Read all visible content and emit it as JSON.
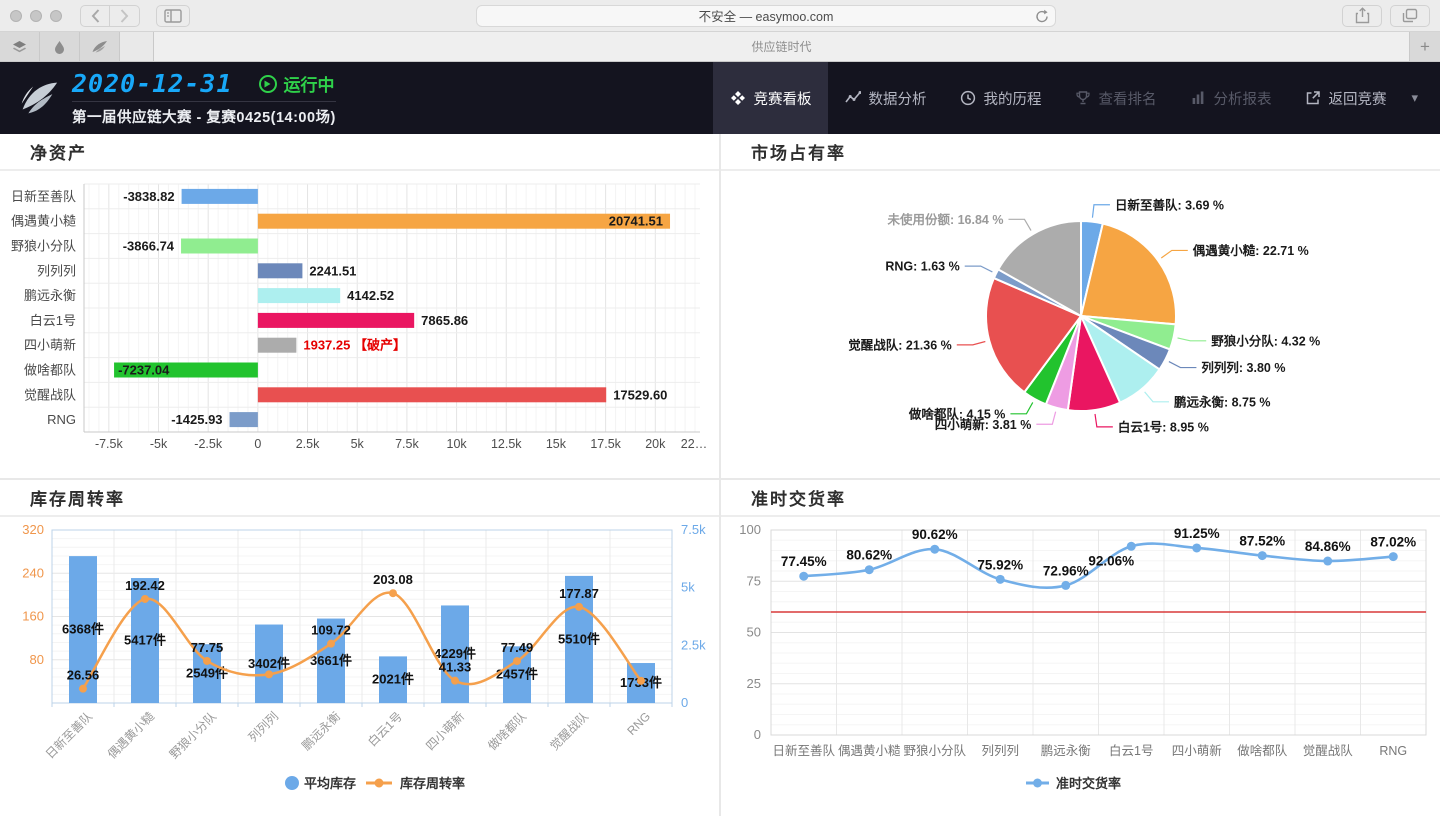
{
  "browser": {
    "url_text": "不安全 — easymoo.com",
    "tab_title": "供应链时代",
    "new_tab_label": "+"
  },
  "header": {
    "date": "2020-12-31",
    "status": "运行中",
    "competition": "第一届供应链大赛 - 复赛0425(14:00场)",
    "caret": "▾",
    "nav": [
      {
        "label": "竞赛看板",
        "icon": "dashboard-icon",
        "active": true,
        "disabled": false
      },
      {
        "label": "数据分析",
        "icon": "line-chart-icon",
        "active": false,
        "disabled": false
      },
      {
        "label": "我的历程",
        "icon": "clock-icon",
        "active": false,
        "disabled": false
      },
      {
        "label": "查看排名",
        "icon": "trophy-icon",
        "active": false,
        "disabled": true
      },
      {
        "label": "分析报表",
        "icon": "report-icon",
        "active": false,
        "disabled": true
      },
      {
        "label": "返回竞赛",
        "icon": "external-link-icon",
        "active": false,
        "disabled": false
      }
    ]
  },
  "teams": [
    "日新至善队",
    "偶遇黄小糙",
    "野狼小分队",
    "列列列",
    "鹏远永衡",
    "白云1号",
    "四小萌新",
    "做啥都队",
    "觉醒战队",
    "RNG"
  ],
  "chart_data": [
    {
      "type": "bar",
      "orientation": "horizontal",
      "title": "净资产",
      "categories": [
        "日新至善队",
        "偶遇黄小糙",
        "野狼小分队",
        "列列列",
        "鹏远永衡",
        "白云1号",
        "四小萌新",
        "做啥都队",
        "觉醒战队",
        "RNG"
      ],
      "values": [
        -3838.82,
        20741.51,
        -3866.74,
        2241.51,
        4142.52,
        7865.86,
        1937.25,
        -7237.04,
        17529.6,
        -1425.93
      ],
      "labels": [
        "-3838.82",
        "20741.51",
        "-3866.74",
        "2241.51",
        "4142.52",
        "7865.86",
        "1937.25 【破产】",
        "-7237.04",
        "17529.60",
        "-1425.93"
      ],
      "colors": [
        "#6CA9E8",
        "#F6A543",
        "#90ED90",
        "#6C88BA",
        "#ADEFEF",
        "#EA1661",
        "#ACACAC",
        "#22C32E",
        "#E85050",
        "#7C9CC9"
      ],
      "label_colors": [
        "#1a1a1a",
        "#1a1a1a",
        "#1a1a1a",
        "#1a1a1a",
        "#1a1a1a",
        "#1a1a1a",
        "#e60000",
        "#1a1a1a",
        "#1a1a1a",
        "#1a1a1a"
      ],
      "x_ticks": [
        "-7.5k",
        "-5k",
        "-2.5k",
        "0",
        "2.5k",
        "5k",
        "7.5k",
        "10k",
        "12.5k",
        "15k",
        "17.5k",
        "20k",
        "22…"
      ],
      "xlim": [
        -8750,
        22250
      ],
      "grid": true
    },
    {
      "type": "pie",
      "title": "市场占有率",
      "slices": [
        {
          "name": "日新至善队",
          "value": 3.69,
          "label": "日新至善队: 3.69 %",
          "color": "#6CA9E8",
          "label_color": "#1a1a1a"
        },
        {
          "name": "偶遇黄小糙",
          "value": 22.71,
          "label": "偶遇黄小糙: 22.71 %",
          "color": "#F6A543",
          "label_color": "#1a1a1a"
        },
        {
          "name": "野狼小分队",
          "value": 4.32,
          "label": "野狼小分队: 4.32 %",
          "color": "#90ED90",
          "label_color": "#1a1a1a"
        },
        {
          "name": "列列列",
          "value": 3.8,
          "label": "列列列: 3.80 %",
          "color": "#6C88BA",
          "label_color": "#1a1a1a"
        },
        {
          "name": "鹏远永衡",
          "value": 8.75,
          "label": "鹏远永衡: 8.75 %",
          "color": "#ADEFEF",
          "label_color": "#1a1a1a"
        },
        {
          "name": "白云1号",
          "value": 8.95,
          "label": "白云1号: 8.95 %",
          "color": "#EA1661",
          "label_color": "#1a1a1a"
        },
        {
          "name": "四小萌新",
          "value": 3.81,
          "label": "四小萌新: 3.81 %",
          "color": "#EE9CE3",
          "label_color": "#1a1a1a"
        },
        {
          "name": "做啥都队",
          "value": 4.15,
          "label": "做啥都队: 4.15 %",
          "color": "#22C32E",
          "label_color": "#1a1a1a"
        },
        {
          "name": "觉醒战队",
          "value": 21.36,
          "label": "觉醒战队: 21.36 %",
          "color": "#E85050",
          "label_color": "#1a1a1a"
        },
        {
          "name": "RNG",
          "value": 1.63,
          "label": "RNG: 1.63 %",
          "color": "#7C9CC9",
          "label_color": "#1a1a1a"
        },
        {
          "name": "未使用份额",
          "value": 16.84,
          "label": "未使用份额: 16.84 %",
          "color": "#ACACAC",
          "label_color": "#9a9a9a"
        }
      ]
    },
    {
      "type": "bar+line",
      "title": "库存周转率",
      "categories": [
        "日新至善队",
        "偶遇黄小糙",
        "野狼小分队",
        "列列列",
        "鹏远永衡",
        "白云1号",
        "四小萌新",
        "做啥都队",
        "觉醒战队",
        "RNG"
      ],
      "series": [
        {
          "name": "平均库存",
          "type": "bar",
          "axis": "right",
          "color": "#6CA9E8",
          "values": [
            6368,
            5417,
            2549,
            3402,
            3661,
            2021,
            4229,
            2457,
            5510,
            1733
          ],
          "labels": [
            "6368件",
            "5417件",
            "2549件",
            "3402件",
            "3661件",
            "2021件",
            "4229件",
            "2457件",
            "5510件",
            "1733件"
          ]
        },
        {
          "name": "库存周转率",
          "type": "line",
          "axis": "left",
          "color": "#F5A04C",
          "values": [
            26.56,
            192.42,
            77.75,
            53,
            109.72,
            203.08,
            41.33,
            77.49,
            177.87,
            41
          ],
          "labels": [
            "26.56",
            "192.42",
            "77.75",
            "",
            "109.72",
            "203.08",
            "41.33",
            "77.49",
            "177.87",
            ""
          ]
        }
      ],
      "left_ticks": [
        "320",
        "240",
        "160",
        "80"
      ],
      "left_tick_values": [
        320,
        240,
        160,
        80
      ],
      "right_ticks": [
        "7.5k",
        "5k",
        "2.5k",
        "0"
      ],
      "right_tick_values": [
        7500,
        5000,
        2500,
        0
      ],
      "ylim_left": [
        0,
        320
      ],
      "ylim_right": [
        0,
        7500
      ],
      "legend": [
        "平均库存",
        "库存周转率"
      ],
      "grid": true
    },
    {
      "type": "line",
      "title": "准时交货率",
      "categories": [
        "日新至善队",
        "偶遇黄小糙",
        "野狼小分队",
        "列列列",
        "鹏远永衡",
        "白云1号",
        "四小萌新",
        "做啥都队",
        "觉醒战队",
        "RNG"
      ],
      "values": [
        77.45,
        80.62,
        90.62,
        75.92,
        72.96,
        92.06,
        91.25,
        87.52,
        84.86,
        87.02
      ],
      "labels": [
        "77.45%",
        "80.62%",
        "90.62%",
        "75.92%",
        "72.96%",
        "92.06%",
        "91.25%",
        "87.52%",
        "84.86%",
        "87.02%"
      ],
      "label_positions": [
        "above",
        "above",
        "above",
        "above",
        "above",
        "below",
        "above",
        "above",
        "above",
        "above"
      ],
      "color": "#72AEE8",
      "threshold": 60,
      "threshold_color": "#D93A3A",
      "y_ticks": [
        "100",
        "75",
        "50",
        "25",
        "0"
      ],
      "y_tick_values": [
        100,
        75,
        50,
        25,
        0
      ],
      "ylim": [
        0,
        100
      ],
      "legend": [
        "准时交货率"
      ],
      "grid": true
    }
  ]
}
